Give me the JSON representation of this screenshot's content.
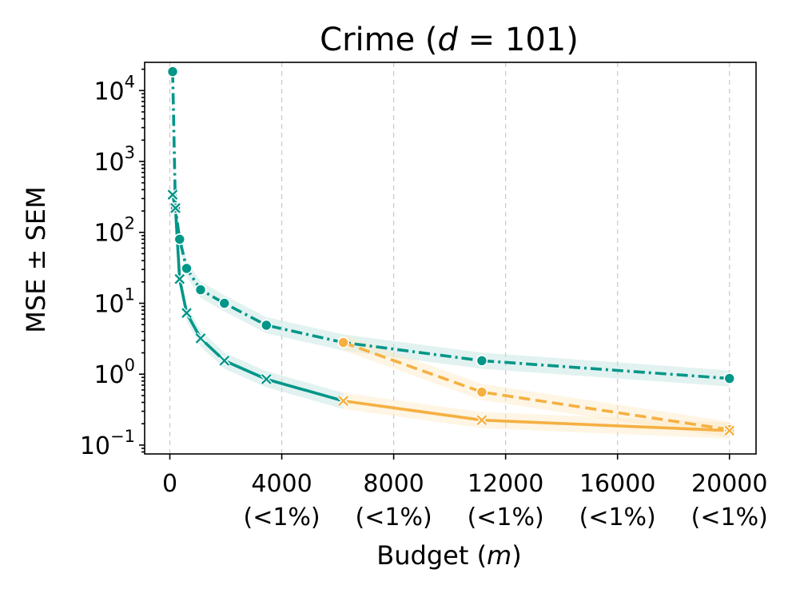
{
  "chart_data": {
    "type": "line",
    "title_prefix": "Crime (",
    "title_math": "d",
    "title_suffix": " = 101)",
    "xlabel_prefix": "Budget (",
    "xlabel_math": "m",
    "xlabel_suffix": ")",
    "ylabel": "MSE ± SEM",
    "xlim": [
      -900,
      20950
    ],
    "ylim": [
      0.075,
      25000
    ],
    "yscale": "log",
    "grid": "x",
    "x_ticks": [
      {
        "value": 0,
        "label": "0",
        "sublabel": ""
      },
      {
        "value": 4000,
        "label": "4000",
        "sublabel": "(<1%)"
      },
      {
        "value": 8000,
        "label": "8000",
        "sublabel": "(<1%)"
      },
      {
        "value": 12000,
        "label": "12000",
        "sublabel": "(<1%)"
      },
      {
        "value": 16000,
        "label": "16000",
        "sublabel": "(<1%)"
      },
      {
        "value": 20000,
        "label": "20000",
        "sublabel": "(<1%)"
      }
    ],
    "y_ticks": [
      {
        "value": 0.1,
        "base": "10",
        "exp": "−1"
      },
      {
        "value": 1,
        "base": "10",
        "exp": "0"
      },
      {
        "value": 10,
        "base": "10",
        "exp": "1"
      },
      {
        "value": 100,
        "base": "10",
        "exp": "2"
      },
      {
        "value": 1000,
        "base": "10",
        "exp": "3"
      },
      {
        "value": 10000,
        "base": "10",
        "exp": "4"
      }
    ],
    "series": [
      {
        "color": "#009688",
        "band_color": "#bfe3df",
        "dash": "dashdot",
        "marker": "circle",
        "x": [
          100,
          200,
          350,
          600,
          1100,
          1950,
          3450,
          6200,
          11150,
          20000
        ],
        "y": [
          18500,
          220,
          80,
          31,
          15.5,
          10,
          4.9,
          2.8,
          1.55,
          0.87
        ]
      },
      {
        "color": "#009688",
        "band_color": "#bfe3df",
        "dash": "solid",
        "marker": "x",
        "x": [
          100,
          200,
          350,
          600,
          1100,
          1950,
          3450,
          6200
        ],
        "y": [
          340,
          220,
          22,
          7.3,
          3.2,
          1.55,
          0.85,
          0.42
        ]
      },
      {
        "color": "#f5b041",
        "band_color": "#fde9c4",
        "dash": "dashed",
        "marker": "circle",
        "x": [
          6200,
          11150,
          20000
        ],
        "y": [
          2.8,
          0.56,
          0.165
        ]
      },
      {
        "color": "#f5b041",
        "band_color": "#fde9c4",
        "dash": "solid",
        "marker": "x",
        "x": [
          6200,
          11150,
          20000
        ],
        "y": [
          0.42,
          0.225,
          0.16
        ]
      }
    ]
  }
}
